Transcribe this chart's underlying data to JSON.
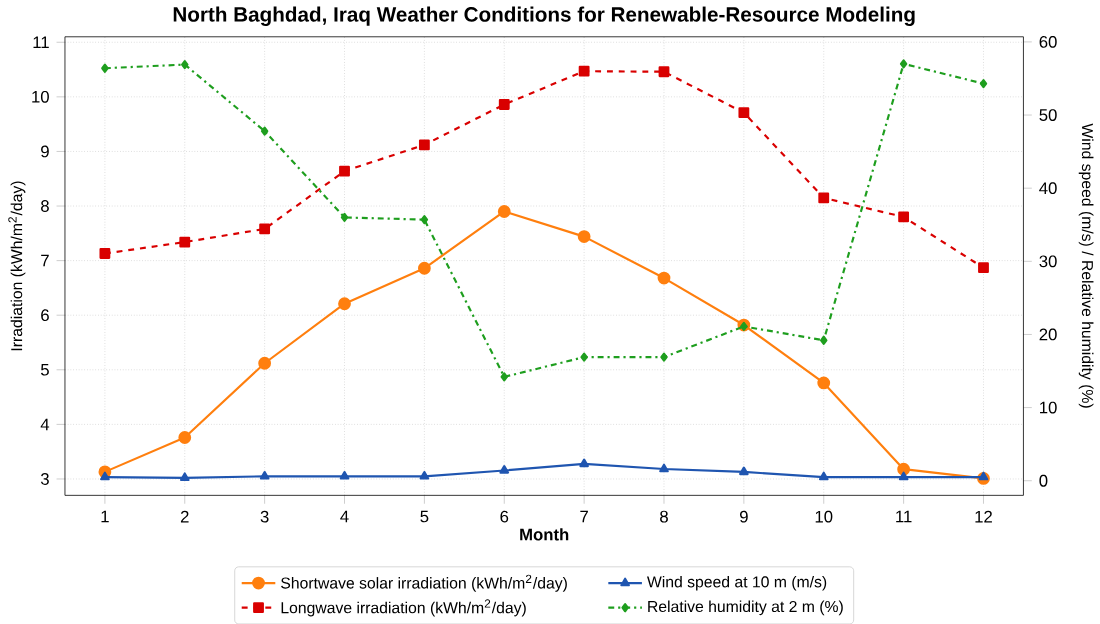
{
  "chart_data": {
    "type": "line",
    "title": "North Baghdad, Iraq Weather Conditions for Renewable-Resource Modeling",
    "xlabel": "Month",
    "ylabel": "Irradiation (kWh/m$^{2}$/day)",
    "y2label": "Wind speed (m/s) / Relative humidity (%)",
    "x": [
      1,
      2,
      3,
      4,
      5,
      6,
      7,
      8,
      9,
      10,
      11,
      12
    ],
    "series": [
      {
        "name": "Shortwave solar irradiation (kWh/m$^{2}$/day)",
        "color": "#ff7f0e",
        "marker": "circle",
        "line_style": "solid",
        "values": [
          3.13,
          3.76,
          5.12,
          6.21,
          6.86,
          7.9,
          7.44,
          6.68,
          5.82,
          4.76,
          3.18,
          3.01
        ]
      },
      {
        "name": "Longwave irradiation (kWh/m$^{2}$/day)",
        "color": "#d90000",
        "marker": "square",
        "line_style": "dashed",
        "values": [
          7.13,
          7.34,
          7.58,
          8.64,
          9.12,
          9.86,
          10.47,
          10.46,
          9.71,
          8.15,
          7.8,
          6.87
        ]
      },
      {
        "name": "Wind speed at 10 m (m/s)",
        "color": "#1f55b0",
        "marker": "triangle",
        "line_style": "solid",
        "axis": "y2",
        "values": [
          0.5,
          0.4,
          0.6,
          0.6,
          0.6,
          1.4,
          2.3,
          1.6,
          1.2,
          0.5,
          0.5,
          0.5
        ]
      },
      {
        "name": "Relative humidity at 2 m (%)",
        "color": "#1e9e1e",
        "marker": "diamond",
        "line_style": "dashdot",
        "axis": "y2",
        "values": [
          56.4,
          56.9,
          47.8,
          36.0,
          35.7,
          14.2,
          16.9,
          16.9,
          21.1,
          19.2,
          57.0,
          54.3
        ]
      }
    ],
    "xlim": [
      0.5,
      12.5
    ],
    "xticks": [
      1,
      2,
      3,
      4,
      5,
      6,
      7,
      8,
      9,
      10,
      11,
      12
    ],
    "ylim": [
      2.7,
      11.1
    ],
    "yticks": [
      3,
      4,
      5,
      6,
      7,
      8,
      9,
      10,
      11
    ],
    "y2lim": [
      -2,
      60.7
    ],
    "y2ticks": [
      0,
      10,
      20,
      30,
      40,
      50,
      60
    ],
    "grid": true,
    "legend": "bottom"
  }
}
